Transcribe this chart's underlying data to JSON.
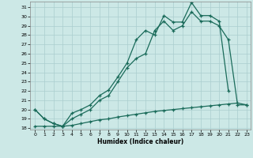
{
  "xlabel": "Humidex (Indice chaleur)",
  "background_color": "#cce8e6",
  "grid_color": "#aacece",
  "line_color": "#1a6b5a",
  "x_ticks": [
    0,
    1,
    2,
    3,
    4,
    5,
    6,
    7,
    8,
    9,
    10,
    11,
    12,
    13,
    14,
    15,
    16,
    17,
    18,
    19,
    20,
    21,
    22,
    23
  ],
  "y_ticks": [
    18,
    19,
    20,
    21,
    22,
    23,
    24,
    25,
    26,
    27,
    28,
    29,
    30,
    31
  ],
  "x_min": -0.5,
  "x_max": 23.4,
  "y_min": 17.85,
  "y_max": 31.6,
  "line_upper_x": [
    0,
    1,
    2,
    3,
    4,
    5,
    6,
    7,
    8,
    9,
    10,
    11,
    12,
    13,
    14,
    15,
    16,
    17,
    18,
    19,
    20,
    21
  ],
  "line_upper_y": [
    20.0,
    19.0,
    18.5,
    18.2,
    19.6,
    20.0,
    20.5,
    21.5,
    22.1,
    23.5,
    25.0,
    27.5,
    28.5,
    28.0,
    30.1,
    29.4,
    29.4,
    31.5,
    30.1,
    30.1,
    29.5,
    22.0
  ],
  "line_mid_x": [
    0,
    1,
    2,
    3,
    4,
    5,
    6,
    7,
    8,
    9,
    10,
    11,
    12,
    13,
    14,
    15,
    16,
    17,
    18,
    19,
    20,
    21,
    22,
    23
  ],
  "line_mid_y": [
    20.0,
    19.0,
    18.5,
    18.2,
    19.0,
    19.5,
    20.0,
    21.0,
    21.5,
    23.0,
    24.5,
    25.5,
    26.0,
    28.5,
    29.5,
    28.5,
    29.0,
    30.5,
    29.5,
    29.5,
    29.0,
    27.5,
    20.5,
    20.5
  ],
  "line_low_x": [
    0,
    1,
    2,
    3,
    4,
    5,
    6,
    7,
    8,
    9,
    10,
    11,
    12,
    13,
    14,
    15,
    16,
    17,
    18,
    19,
    20,
    21,
    22,
    23
  ],
  "line_low_y": [
    18.2,
    18.2,
    18.2,
    18.2,
    18.3,
    18.5,
    18.7,
    18.9,
    19.0,
    19.2,
    19.35,
    19.5,
    19.65,
    19.8,
    19.9,
    20.0,
    20.1,
    20.2,
    20.3,
    20.4,
    20.5,
    20.6,
    20.7,
    20.5
  ]
}
